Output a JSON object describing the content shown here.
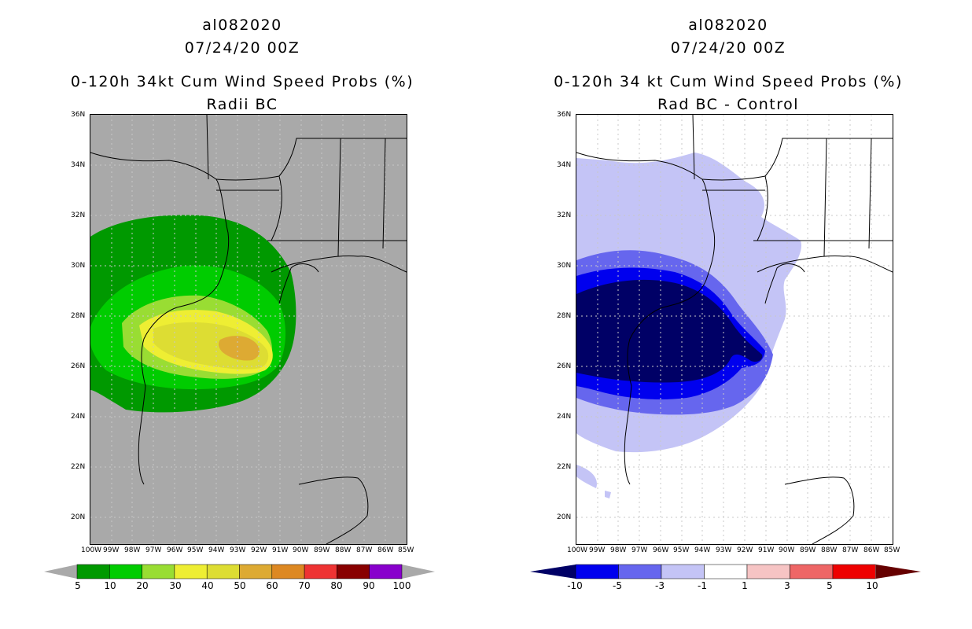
{
  "left_panel": {
    "title_line1": "al082020",
    "title_line2": "07/24/20 00Z",
    "title_line3": "0-120h 34kt Cum Wind Speed Probs (%)",
    "title_line4": "Radii BC",
    "colorbar": {
      "labels": [
        "5",
        "10",
        "20",
        "30",
        "40",
        "50",
        "60",
        "70",
        "80",
        "90",
        "100"
      ],
      "colors": [
        "#009900",
        "#00cc00",
        "#99dd33",
        "#eeee33",
        "#dddd33",
        "#ddaa33",
        "#dd8822",
        "#ee3333",
        "#880000",
        "#8800cc"
      ],
      "end_color": "#a9a9a9"
    }
  },
  "right_panel": {
    "title_line1": "al082020",
    "title_line2": "07/24/20 00Z",
    "title_line3": "0-120h 34 kt Cum Wind Speed Probs (%)",
    "title_line4": "Rad BC - Control",
    "colorbar": {
      "labels": [
        "-10",
        "-5",
        "-3",
        "-1",
        "1",
        "3",
        "5",
        "10"
      ],
      "colors": [
        "#0000ee",
        "#6666ee",
        "#c4c4f6",
        "#ffffff",
        "#f6c4c4",
        "#ee6666",
        "#ee0000"
      ],
      "left_end_color": "#000066",
      "right_end_color": "#660000"
    }
  },
  "axes": {
    "lat_labels": [
      "36N",
      "34N",
      "32N",
      "30N",
      "28N",
      "26N",
      "24N",
      "22N",
      "20N"
    ],
    "lon_labels": [
      "100W",
      "99W",
      "98W",
      "97W",
      "96W",
      "95W",
      "94W",
      "93W",
      "92W",
      "91W",
      "90W",
      "89W",
      "88W",
      "87W",
      "86W",
      "85W"
    ]
  },
  "colors": {
    "land_bg": "#a9a9a9",
    "green_dark": "#009900",
    "green": "#00cc00",
    "yellow_green": "#99dd33",
    "yellow": "#eeee33",
    "yellow2": "#dddd33",
    "orange": "#ddaa33",
    "navy": "#000066",
    "blue": "#0000ee",
    "blue_mid": "#6666ee",
    "blue_light": "#c4c4f6"
  }
}
